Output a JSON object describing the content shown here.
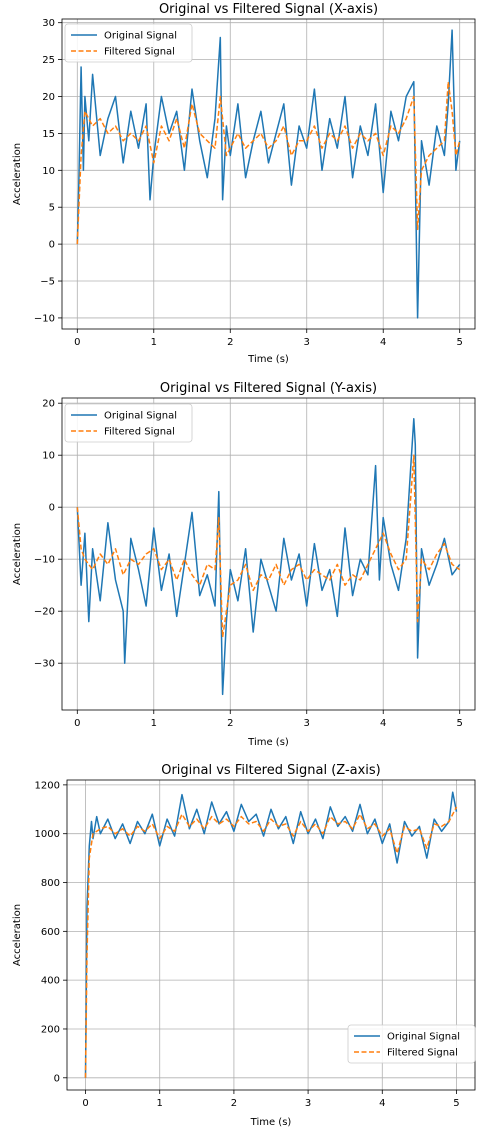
{
  "chart_data": [
    {
      "type": "line",
      "title": "Original vs Filtered Signal (X-axis)",
      "xlabel": "Time (s)",
      "ylabel": "Acceleration",
      "xlim": [
        -0.2,
        5.2
      ],
      "ylim": [
        -11.5,
        30.5
      ],
      "xticks": [
        0,
        1,
        2,
        3,
        4,
        5
      ],
      "yticks": [
        -10,
        -5,
        0,
        5,
        10,
        15,
        20,
        25,
        30
      ],
      "grid": true,
      "legend_position": "top-left",
      "series": [
        {
          "name": "Original Signal",
          "color": "#1f77b4",
          "style": "solid",
          "x": [
            0,
            0.02,
            0.05,
            0.08,
            0.1,
            0.15,
            0.2,
            0.3,
            0.4,
            0.5,
            0.6,
            0.7,
            0.8,
            0.9,
            0.95,
            1.0,
            1.1,
            1.2,
            1.3,
            1.4,
            1.5,
            1.6,
            1.7,
            1.8,
            1.87,
            1.9,
            1.95,
            2.0,
            2.1,
            2.2,
            2.3,
            2.4,
            2.5,
            2.6,
            2.7,
            2.8,
            2.9,
            3.0,
            3.1,
            3.2,
            3.3,
            3.4,
            3.5,
            3.6,
            3.7,
            3.8,
            3.9,
            4.0,
            4.1,
            4.2,
            4.3,
            4.4,
            4.45,
            4.5,
            4.6,
            4.7,
            4.8,
            4.85,
            4.9,
            4.95,
            5.0
          ],
          "y": [
            0,
            8,
            24,
            10,
            20,
            14,
            23,
            12,
            17,
            20,
            11,
            18,
            13,
            19,
            6,
            12,
            20,
            15,
            18,
            10,
            21,
            14,
            9,
            17,
            28,
            6,
            16,
            12,
            19,
            9,
            14,
            18,
            11,
            15,
            19,
            8,
            16,
            13,
            21,
            10,
            17,
            13,
            20,
            9,
            16,
            12,
            19,
            7,
            18,
            14,
            20,
            22,
            -10,
            14,
            8,
            16,
            12,
            19,
            29,
            10,
            14
          ]
        },
        {
          "name": "Filtered Signal",
          "color": "#ff7f0e",
          "style": "dashed",
          "x": [
            0,
            0.05,
            0.1,
            0.2,
            0.3,
            0.4,
            0.5,
            0.6,
            0.7,
            0.8,
            0.9,
            1.0,
            1.1,
            1.2,
            1.3,
            1.4,
            1.5,
            1.6,
            1.7,
            1.8,
            1.87,
            1.95,
            2.1,
            2.2,
            2.3,
            2.4,
            2.5,
            2.6,
            2.7,
            2.8,
            2.9,
            3.0,
            3.1,
            3.2,
            3.3,
            3.4,
            3.5,
            3.6,
            3.7,
            3.8,
            3.9,
            4.0,
            4.1,
            4.2,
            4.3,
            4.4,
            4.45,
            4.5,
            4.6,
            4.7,
            4.8,
            4.85,
            4.9,
            4.95,
            5.0
          ],
          "y": [
            0,
            12,
            18,
            16,
            17,
            15,
            16,
            14,
            15,
            14,
            16,
            11,
            16,
            14,
            17,
            13,
            19,
            15,
            14,
            13,
            20,
            12,
            15,
            13,
            14,
            15,
            13,
            14,
            16,
            12,
            14,
            14,
            16,
            13,
            15,
            14,
            16,
            13,
            15,
            14,
            15,
            12,
            16,
            15,
            17,
            20,
            2,
            10,
            12,
            13,
            14,
            22,
            18,
            12,
            14
          ]
        }
      ]
    },
    {
      "type": "line",
      "title": "Original vs Filtered Signal (Y-axis)",
      "xlabel": "Time (s)",
      "ylabel": "Acceleration",
      "xlim": [
        -0.2,
        5.2
      ],
      "ylim": [
        -39,
        21
      ],
      "xticks": [
        0,
        1,
        2,
        3,
        4,
        5
      ],
      "yticks": [
        -30,
        -20,
        -10,
        0,
        10,
        20
      ],
      "grid": true,
      "legend_position": "top-left",
      "series": [
        {
          "name": "Original Signal",
          "color": "#1f77b4",
          "style": "solid",
          "x": [
            0,
            0.05,
            0.1,
            0.15,
            0.2,
            0.3,
            0.4,
            0.5,
            0.6,
            0.62,
            0.7,
            0.8,
            0.9,
            1.0,
            1.1,
            1.2,
            1.3,
            1.4,
            1.5,
            1.6,
            1.7,
            1.8,
            1.85,
            1.9,
            1.95,
            2.0,
            2.1,
            2.2,
            2.3,
            2.4,
            2.5,
            2.6,
            2.7,
            2.8,
            2.9,
            3.0,
            3.1,
            3.2,
            3.3,
            3.4,
            3.5,
            3.6,
            3.7,
            3.8,
            3.9,
            3.95,
            4.0,
            4.1,
            4.2,
            4.3,
            4.4,
            4.42,
            4.45,
            4.5,
            4.6,
            4.7,
            4.8,
            4.9,
            5.0
          ],
          "y": [
            0,
            -15,
            -5,
            -22,
            -8,
            -18,
            -3,
            -14,
            -20,
            -30,
            -6,
            -12,
            -19,
            -4,
            -16,
            -9,
            -21,
            -11,
            -1,
            -17,
            -13,
            -19,
            3,
            -36,
            -22,
            -12,
            -18,
            -8,
            -24,
            -10,
            -15,
            -20,
            -6,
            -14,
            -9,
            -19,
            -7,
            -16,
            -12,
            -21,
            -4,
            -17,
            -10,
            -13,
            8,
            -14,
            -2,
            -11,
            -16,
            -6,
            17,
            12,
            -29,
            -8,
            -15,
            -11,
            -6,
            -13,
            -11
          ]
        },
        {
          "name": "Filtered Signal",
          "color": "#ff7f0e",
          "style": "dashed",
          "x": [
            0,
            0.05,
            0.1,
            0.2,
            0.3,
            0.4,
            0.5,
            0.6,
            0.7,
            0.8,
            0.9,
            1.0,
            1.1,
            1.2,
            1.3,
            1.4,
            1.5,
            1.6,
            1.7,
            1.8,
            1.85,
            1.9,
            2.0,
            2.1,
            2.2,
            2.3,
            2.4,
            2.5,
            2.6,
            2.7,
            2.8,
            2.9,
            3.0,
            3.1,
            3.2,
            3.3,
            3.4,
            3.5,
            3.6,
            3.7,
            3.8,
            3.9,
            4.0,
            4.1,
            4.2,
            4.3,
            4.4,
            4.45,
            4.5,
            4.6,
            4.7,
            4.8,
            4.9,
            5.0
          ],
          "y": [
            0,
            -8,
            -10,
            -12,
            -9,
            -11,
            -8,
            -13,
            -10,
            -11,
            -9,
            -8,
            -12,
            -10,
            -14,
            -10,
            -13,
            -15,
            -11,
            -12,
            -2,
            -25,
            -15,
            -14,
            -11,
            -16,
            -13,
            -14,
            -11,
            -15,
            -12,
            -11,
            -14,
            -12,
            -13,
            -14,
            -11,
            -15,
            -13,
            -14,
            -11,
            -8,
            -5,
            -9,
            -12,
            -10,
            10,
            -22,
            -10,
            -12,
            -9,
            -7,
            -11,
            -12
          ]
        }
      ]
    },
    {
      "type": "line",
      "title": "Original vs Filtered Signal (Z-axis)",
      "xlabel": "Time (s)",
      "ylabel": "Acceleration",
      "xlim": [
        -0.25,
        5.25
      ],
      "ylim": [
        -50,
        1220
      ],
      "xticks": [
        0,
        1,
        2,
        3,
        4,
        5
      ],
      "yticks": [
        0,
        200,
        400,
        600,
        800,
        1000,
        1200
      ],
      "grid": true,
      "legend_position": "bottom-right",
      "series": [
        {
          "name": "Original Signal",
          "color": "#1f77b4",
          "style": "solid",
          "x": [
            0,
            0.02,
            0.05,
            0.08,
            0.1,
            0.15,
            0.2,
            0.3,
            0.4,
            0.5,
            0.6,
            0.7,
            0.8,
            0.9,
            1.0,
            1.1,
            1.2,
            1.3,
            1.4,
            1.5,
            1.6,
            1.7,
            1.8,
            1.9,
            2.0,
            2.1,
            2.2,
            2.3,
            2.4,
            2.5,
            2.6,
            2.7,
            2.8,
            2.9,
            3.0,
            3.1,
            3.2,
            3.3,
            3.4,
            3.5,
            3.6,
            3.7,
            3.8,
            3.9,
            4.0,
            4.1,
            4.2,
            4.3,
            4.4,
            4.5,
            4.6,
            4.7,
            4.8,
            4.9,
            4.95,
            5.0
          ],
          "y": [
            0,
            700,
            950,
            1050,
            980,
            1070,
            1000,
            1060,
            980,
            1040,
            960,
            1050,
            1000,
            1080,
            950,
            1060,
            990,
            1160,
            1020,
            1100,
            1000,
            1130,
            1040,
            1090,
            1010,
            1120,
            1050,
            1080,
            990,
            1100,
            1020,
            1070,
            960,
            1090,
            1000,
            1060,
            980,
            1110,
            1030,
            1070,
            1010,
            1120,
            1000,
            1060,
            960,
            1040,
            880,
            1050,
            990,
            1030,
            900,
            1060,
            1010,
            1050,
            1170,
            1090
          ]
        },
        {
          "name": "Filtered Signal",
          "color": "#ff7f0e",
          "style": "dashed",
          "x": [
            0,
            0.02,
            0.05,
            0.1,
            0.2,
            0.3,
            0.4,
            0.5,
            0.6,
            0.7,
            0.8,
            0.9,
            1.0,
            1.1,
            1.2,
            1.3,
            1.4,
            1.5,
            1.6,
            1.7,
            1.8,
            1.9,
            2.0,
            2.1,
            2.2,
            2.3,
            2.4,
            2.5,
            2.6,
            2.7,
            2.8,
            2.9,
            3.0,
            3.1,
            3.2,
            3.3,
            3.4,
            3.5,
            3.6,
            3.7,
            3.8,
            3.9,
            4.0,
            4.1,
            4.2,
            4.3,
            4.4,
            4.5,
            4.6,
            4.7,
            4.8,
            4.9,
            5.0
          ],
          "y": [
            0,
            500,
            900,
            1000,
            1020,
            1030,
            1000,
            1020,
            990,
            1030,
            1010,
            1040,
            980,
            1030,
            1010,
            1080,
            1030,
            1060,
            1020,
            1070,
            1040,
            1060,
            1030,
            1070,
            1040,
            1050,
            1010,
            1060,
            1030,
            1040,
            990,
            1050,
            1010,
            1040,
            1000,
            1070,
            1040,
            1050,
            1020,
            1080,
            1020,
            1040,
            990,
            1020,
            920,
            1030,
            1010,
            1020,
            940,
            1040,
            1030,
            1050,
            1110
          ]
        }
      ]
    }
  ]
}
